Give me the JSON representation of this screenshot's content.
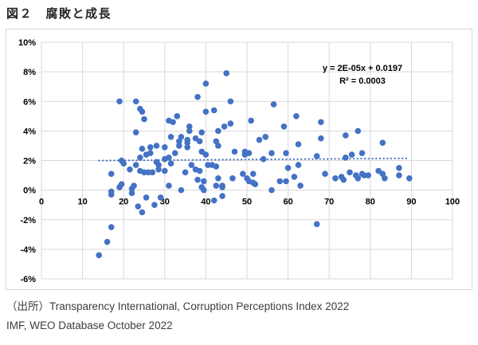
{
  "title": "図２　腐敗と成長",
  "source": {
    "line1": "（出所）Transparency International, Corruption Perceptions Index 2022",
    "line2": "IMF, WEO Database October 2022"
  },
  "colors": {
    "marker": "#4472C4",
    "trendline": "#4472C4",
    "gridline": "#D9D9D9",
    "chart_border": "#D9D9D9",
    "axis_text": "#000000"
  },
  "chart_data": {
    "type": "scatter",
    "title": "図２　腐敗と成長",
    "xlabel": "",
    "ylabel": "",
    "xlim": [
      0,
      100
    ],
    "ylim_percent": [
      -6,
      10
    ],
    "grid": true,
    "legend": "none",
    "x_ticks": [
      0,
      10,
      20,
      30,
      40,
      50,
      60,
      70,
      80,
      90,
      100
    ],
    "y_tick_values": [
      10,
      8,
      6,
      4,
      2,
      0,
      -2,
      -4,
      -6
    ],
    "y_tick_labels": [
      "10%",
      "8%",
      "6%",
      "4%",
      "2%",
      "0%",
      "-2%",
      "-4%",
      "-6%"
    ],
    "trendline": {
      "equation_label": "y = 2E-05x + 0.0197",
      "r_squared_label": "R² = 0.0003",
      "slope": 2e-05,
      "intercept": 0.0197,
      "x_start": 14,
      "x_end": 89,
      "style": "dotted"
    },
    "points_x_y_percent": [
      [
        19,
        6.0
      ],
      [
        23,
        6.0
      ],
      [
        24,
        5.5
      ],
      [
        24.5,
        5.3
      ],
      [
        25,
        4.8
      ],
      [
        31,
        4.7
      ],
      [
        32,
        4.6
      ],
      [
        23,
        3.9
      ],
      [
        31.5,
        3.6
      ],
      [
        24.5,
        2.8
      ],
      [
        26.5,
        2.9
      ],
      [
        28,
        3.0
      ],
      [
        30,
        2.9
      ],
      [
        25.5,
        2.4
      ],
      [
        26.5,
        2.5
      ],
      [
        19.5,
        2.0
      ],
      [
        20,
        1.8
      ],
      [
        24,
        2.2
      ],
      [
        28,
        1.9
      ],
      [
        30,
        2.1
      ],
      [
        31,
        2.2
      ],
      [
        31.5,
        1.8
      ],
      [
        21.5,
        1.4
      ],
      [
        23,
        1.7
      ],
      [
        24,
        1.3
      ],
      [
        25,
        1.2
      ],
      [
        26,
        1.2
      ],
      [
        27,
        1.2
      ],
      [
        28.5,
        1.7
      ],
      [
        28.5,
        1.4
      ],
      [
        30,
        1.3
      ],
      [
        17,
        1.1
      ],
      [
        19.5,
        0.4
      ],
      [
        22.5,
        0.3
      ],
      [
        45,
        7.9
      ],
      [
        40,
        7.2
      ],
      [
        38,
        6.3
      ],
      [
        46,
        6.0
      ],
      [
        40,
        5.3
      ],
      [
        42,
        5.4
      ],
      [
        33,
        5.0
      ],
      [
        51,
        4.7
      ],
      [
        46,
        4.5
      ],
      [
        44.5,
        4.3
      ],
      [
        36,
        4.3
      ],
      [
        36,
        4.0
      ],
      [
        43,
        4.0
      ],
      [
        39,
        3.9
      ],
      [
        33.5,
        3.3
      ],
      [
        33.5,
        3.0
      ],
      [
        34,
        3.6
      ],
      [
        35.5,
        3.4
      ],
      [
        35.5,
        3.2
      ],
      [
        37.5,
        3.5
      ],
      [
        38.5,
        3.3
      ],
      [
        42.5,
        3.3
      ],
      [
        43,
        3.0
      ],
      [
        53,
        3.4
      ],
      [
        54.5,
        3.6
      ],
      [
        35.5,
        2.9
      ],
      [
        39,
        2.6
      ],
      [
        40,
        2.4
      ],
      [
        47,
        2.6
      ],
      [
        49.5,
        2.6
      ],
      [
        50.5,
        2.5
      ],
      [
        49.5,
        2.4
      ],
      [
        54,
        2.1
      ],
      [
        32.5,
        2.5
      ],
      [
        36.5,
        1.7
      ],
      [
        37.5,
        1.4
      ],
      [
        38.5,
        1.3
      ],
      [
        35,
        1.2
      ],
      [
        40.5,
        1.7
      ],
      [
        41.5,
        1.7
      ],
      [
        42.5,
        1.6
      ],
      [
        43,
        0.8
      ],
      [
        39.5,
        0.6
      ],
      [
        44,
        0.3
      ],
      [
        46.5,
        0.8
      ],
      [
        49,
        1.1
      ],
      [
        50,
        0.8
      ],
      [
        51.5,
        1.1
      ],
      [
        56.5,
        5.8
      ],
      [
        62,
        5.0
      ],
      [
        59,
        4.3
      ],
      [
        68,
        4.6
      ],
      [
        68,
        3.5
      ],
      [
        74,
        3.7
      ],
      [
        77,
        4.0
      ],
      [
        62.5,
        3.1
      ],
      [
        59.5,
        2.5
      ],
      [
        56,
        2.5
      ],
      [
        67,
        2.3
      ],
      [
        75.5,
        2.4
      ],
      [
        78,
        2.5
      ],
      [
        60,
        1.5
      ],
      [
        62.5,
        1.7
      ],
      [
        61.5,
        0.9
      ],
      [
        69,
        1.1
      ],
      [
        71.5,
        0.8
      ],
      [
        73,
        0.9
      ],
      [
        73.5,
        0.7
      ],
      [
        75,
        1.2
      ],
      [
        76.5,
        1.0
      ],
      [
        78,
        1.1
      ],
      [
        58,
        0.6
      ],
      [
        59.5,
        0.6
      ],
      [
        63,
        0.3
      ],
      [
        83,
        3.2
      ],
      [
        74,
        2.2
      ],
      [
        82,
        1.3
      ],
      [
        83,
        1.1
      ],
      [
        83.5,
        0.8
      ],
      [
        87,
        1.5
      ],
      [
        87,
        1.0
      ],
      [
        89.5,
        0.8
      ],
      [
        78.5,
        1.0
      ],
      [
        79.5,
        1.0
      ],
      [
        17,
        -0.3
      ],
      [
        17,
        -0.1
      ],
      [
        19,
        0.2
      ],
      [
        22,
        0.1
      ],
      [
        22,
        -0.2
      ],
      [
        25.5,
        -0.5
      ],
      [
        27.5,
        -1.0
      ],
      [
        29,
        -0.5
      ],
      [
        23.5,
        -1.1
      ],
      [
        24.5,
        -1.5
      ],
      [
        31,
        0.3
      ],
      [
        34,
        0.0
      ],
      [
        17,
        -2.5
      ],
      [
        16,
        -3.5
      ],
      [
        14,
        -4.4
      ],
      [
        38,
        0.7
      ],
      [
        39,
        0.2
      ],
      [
        39.5,
        0.0
      ],
      [
        42.5,
        0.3
      ],
      [
        44,
        0.2
      ],
      [
        44,
        -0.4
      ],
      [
        42,
        -0.7
      ],
      [
        50.5,
        0.6
      ],
      [
        51.5,
        0.5
      ],
      [
        52,
        0.4
      ],
      [
        56,
        0.0
      ],
      [
        67,
        -2.3
      ],
      [
        77,
        0.8
      ]
    ]
  }
}
